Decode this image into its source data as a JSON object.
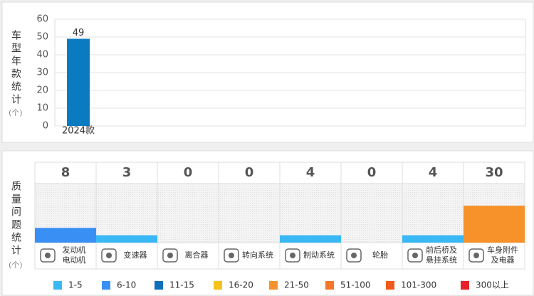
{
  "chart_data": [
    {
      "type": "bar",
      "title": "车型年款统计",
      "unit": "(个)",
      "categories": [
        "2024款"
      ],
      "values": [
        49
      ],
      "color": "#0a7bc1",
      "ylim": [
        0,
        60
      ],
      "yticks": [
        0,
        10,
        20,
        30,
        40,
        50,
        60
      ],
      "grid": true
    },
    {
      "type": "levels",
      "title": "质量问题统计",
      "unit": "(个)",
      "categories": [
        [
          "发动机",
          "电动机"
        ],
        [
          "变速器"
        ],
        [
          "离合器"
        ],
        [
          "转向系统"
        ],
        [
          "制动系统"
        ],
        [
          "轮胎"
        ],
        [
          "前后桥及",
          "悬挂系统"
        ],
        [
          "车身附件",
          "及电器"
        ]
      ],
      "values": [
        8,
        3,
        0,
        0,
        4,
        0,
        4,
        30
      ],
      "legend": [
        {
          "label": "1-5",
          "color": "#3ab8f5"
        },
        {
          "label": "6-10",
          "color": "#3a8ff5"
        },
        {
          "label": "11-15",
          "color": "#0f6fb8"
        },
        {
          "label": "16-20",
          "color": "#f7c21c"
        },
        {
          "label": "21-50",
          "color": "#f7922a"
        },
        {
          "label": "51-100",
          "color": "#f4772a"
        },
        {
          "label": "101-300",
          "color": "#f05a1a"
        },
        {
          "label": "300以上",
          "color": "#e8202a"
        }
      ]
    }
  ]
}
